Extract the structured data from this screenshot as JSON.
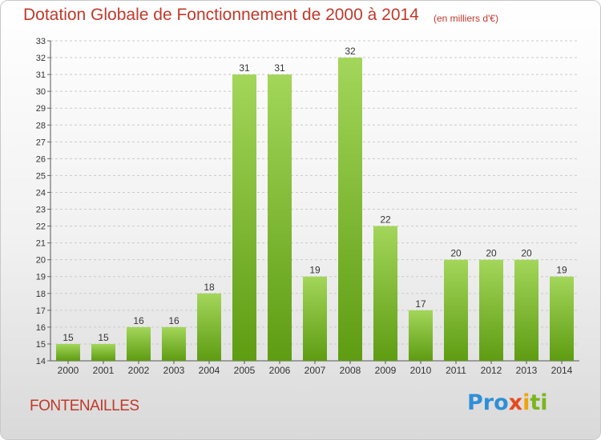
{
  "chart_data": {
    "type": "bar",
    "title": "Dotation Globale de Fonctionnement de 2000 à 2014",
    "subtitle": "(en milliers d'€)",
    "categories": [
      "2000",
      "2001",
      "2002",
      "2003",
      "2004",
      "2005",
      "2006",
      "2007",
      "2008",
      "2009",
      "2010",
      "2011",
      "2012",
      "2013",
      "2014"
    ],
    "values": [
      15,
      15,
      16,
      16,
      18,
      31,
      31,
      19,
      32,
      22,
      17,
      20,
      20,
      20,
      19
    ],
    "ylim": [
      14,
      33
    ],
    "yticks": [
      14,
      15,
      16,
      17,
      18,
      19,
      20,
      21,
      22,
      23,
      24,
      25,
      26,
      27,
      28,
      29,
      30,
      31,
      32,
      33
    ],
    "xlabel": "",
    "ylabel": "",
    "grid": "horizontal dashed",
    "bar_color_light": "#a3d65a",
    "bar_color_dark": "#5e9c12"
  },
  "footer": {
    "commune": "FONTENAILLES",
    "brand_parts": [
      "Pro",
      "x",
      "i",
      "ti"
    ]
  },
  "colors": {
    "title": "#c0392b"
  }
}
